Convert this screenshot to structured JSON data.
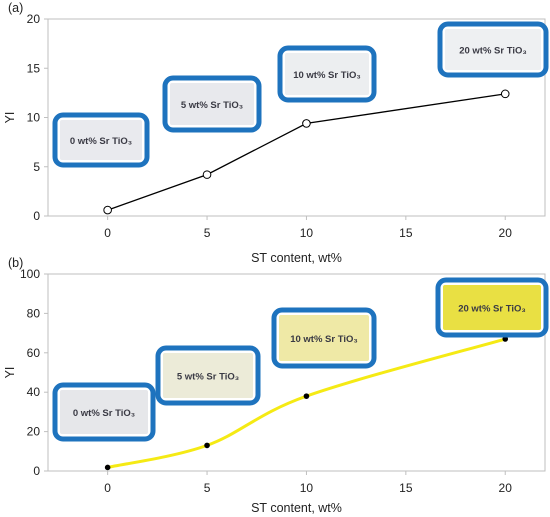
{
  "chart_data": [
    {
      "type": "line",
      "panel_label": "(a)",
      "xlabel": "ST content, wt%",
      "ylabel": "YI",
      "xlim": [
        -3,
        22
      ],
      "ylim": [
        0,
        20
      ],
      "x_ticks": [
        0,
        5,
        10,
        15,
        20
      ],
      "y_ticks": [
        0,
        5,
        10,
        15,
        20
      ],
      "grid": false,
      "series": [
        {
          "x": [
            0,
            5,
            10,
            20
          ],
          "values": [
            0.6,
            4.2,
            9.4,
            12.4
          ],
          "color": "#000000",
          "marker": "open-circle"
        }
      ],
      "sample_images": [
        {
          "label": "0 wt% Sr TiO₃",
          "fill": "#e9eaee"
        },
        {
          "label": "5 wt% Sr TiO₃",
          "fill": "#e8e9ed"
        },
        {
          "label": "10 wt% Sr TiO₃",
          "fill": "#eceef0"
        },
        {
          "label": "20 wt% Sr TiO₃",
          "fill": "#eef0f2"
        }
      ]
    },
    {
      "type": "line",
      "panel_label": "(b)",
      "xlabel": "ST content, wt%",
      "ylabel": "YI",
      "xlim": [
        -3,
        22
      ],
      "ylim": [
        0,
        100
      ],
      "x_ticks": [
        0,
        5,
        10,
        15,
        20
      ],
      "y_ticks": [
        0,
        20,
        40,
        60,
        80,
        100
      ],
      "grid": false,
      "series": [
        {
          "x": [
            0,
            5,
            10,
            20
          ],
          "values": [
            1.8,
            13.0,
            38.0,
            67.0
          ],
          "color": "#f5ea14",
          "marker": "filled-circle"
        }
      ],
      "sample_images": [
        {
          "label": "0 wt% Sr TiO₃",
          "fill": "#e6e7ea"
        },
        {
          "label": "5 wt% Sr TiO₃",
          "fill": "#ecebd8"
        },
        {
          "label": "10 wt% Sr TiO₃",
          "fill": "#efe9a6"
        },
        {
          "label": "20 wt% Sr TiO₃",
          "fill": "#e9e043"
        }
      ]
    }
  ],
  "colors": {
    "frame_blue": "#1e73be",
    "axis": "#bfbfbf"
  }
}
